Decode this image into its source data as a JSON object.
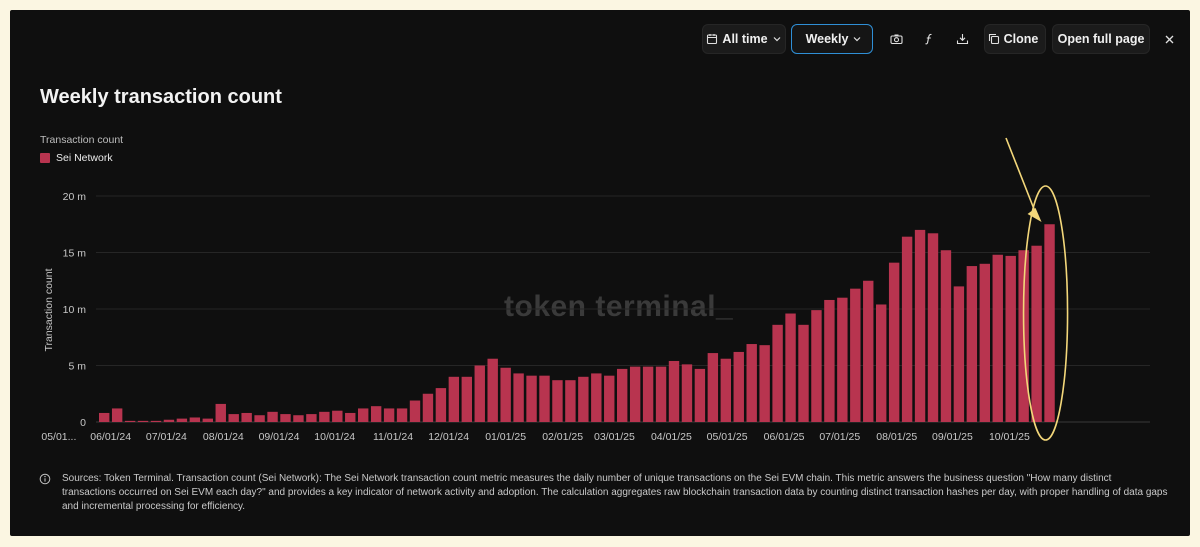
{
  "toolbar": {
    "range_label": "All time",
    "interval_label": "Weekly",
    "clone_label": "Clone",
    "open_full_page_label": "Open full page"
  },
  "watermark": "token terminal_",
  "source_text": "Sources: Token Terminal. Transaction count (Sei Network): The Sei Network transaction count metric measures the daily number of unique transactions on the Sei EVM chain. This metric answers the business question \"How many distinct transactions occurred on Sei EVM each day?\" and provides a key indicator of network activity and adoption. The calculation aggregates raw blockchain transaction data by counting distinct transaction hashes per day, with proper handling of data gaps and incremental processing for efficiency.",
  "colors": {
    "bar": "#b8344f",
    "annotation": "#f3d77a",
    "accent": "#2f8fd6"
  },
  "chart_data": {
    "type": "bar",
    "title": "Weekly transaction count",
    "ylabel": "Transaction count",
    "ylabel_top": "Transaction count",
    "legend": [
      "Sei Network"
    ],
    "ylim": [
      0,
      20000000
    ],
    "yticks": [
      {
        "value": 0,
        "label": "0"
      },
      {
        "value": 5000000,
        "label": "5 m"
      },
      {
        "value": 10000000,
        "label": "10 m"
      },
      {
        "value": 15000000,
        "label": "15 m"
      },
      {
        "value": 20000000,
        "label": "20 m"
      }
    ],
    "xtick_labels": [
      {
        "label": "05/01...",
        "index": -3.5
      },
      {
        "label": "06/01/24",
        "index": 0.5
      },
      {
        "label": "07/01/24",
        "index": 4.8
      },
      {
        "label": "08/01/24",
        "index": 9.2
      },
      {
        "label": "09/01/24",
        "index": 13.5
      },
      {
        "label": "10/01/24",
        "index": 17.8
      },
      {
        "label": "11/01/24",
        "index": 22.3
      },
      {
        "label": "12/01/24",
        "index": 26.6
      },
      {
        "label": "01/01/25",
        "index": 31.0
      },
      {
        "label": "02/01/25",
        "index": 35.4
      },
      {
        "label": "03/01/25",
        "index": 39.4
      },
      {
        "label": "04/01/25",
        "index": 43.8
      },
      {
        "label": "05/01/25",
        "index": 48.1
      },
      {
        "label": "06/01/25",
        "index": 52.5
      },
      {
        "label": "07/01/25",
        "index": 56.8
      },
      {
        "label": "08/01/25",
        "index": 61.2
      },
      {
        "label": "09/01/25",
        "index": 65.5
      },
      {
        "label": "10/01/25",
        "index": 69.9
      }
    ],
    "series": [
      {
        "name": "Sei Network",
        "values": [
          800000,
          1200000,
          100000,
          100000,
          100000,
          200000,
          300000,
          400000,
          300000,
          1600000,
          700000,
          800000,
          600000,
          900000,
          700000,
          600000,
          700000,
          900000,
          1000000,
          800000,
          1200000,
          1400000,
          1200000,
          1200000,
          1900000,
          2500000,
          3000000,
          4000000,
          4000000,
          5000000,
          5600000,
          4800000,
          4300000,
          4100000,
          4100000,
          3700000,
          3700000,
          4000000,
          4300000,
          4100000,
          4700000,
          4900000,
          4900000,
          4900000,
          5400000,
          5100000,
          4700000,
          6100000,
          5600000,
          6200000,
          6900000,
          6800000,
          8600000,
          9600000,
          8600000,
          9900000,
          10800000,
          11000000,
          11800000,
          12500000,
          10400000,
          14100000,
          16400000,
          17000000,
          16700000,
          15200000,
          12000000,
          13800000,
          14000000,
          14800000,
          14700000,
          15200000,
          15600000,
          17500000
        ]
      }
    ],
    "annotation": "arrow and ellipse highlighting the latest week"
  }
}
